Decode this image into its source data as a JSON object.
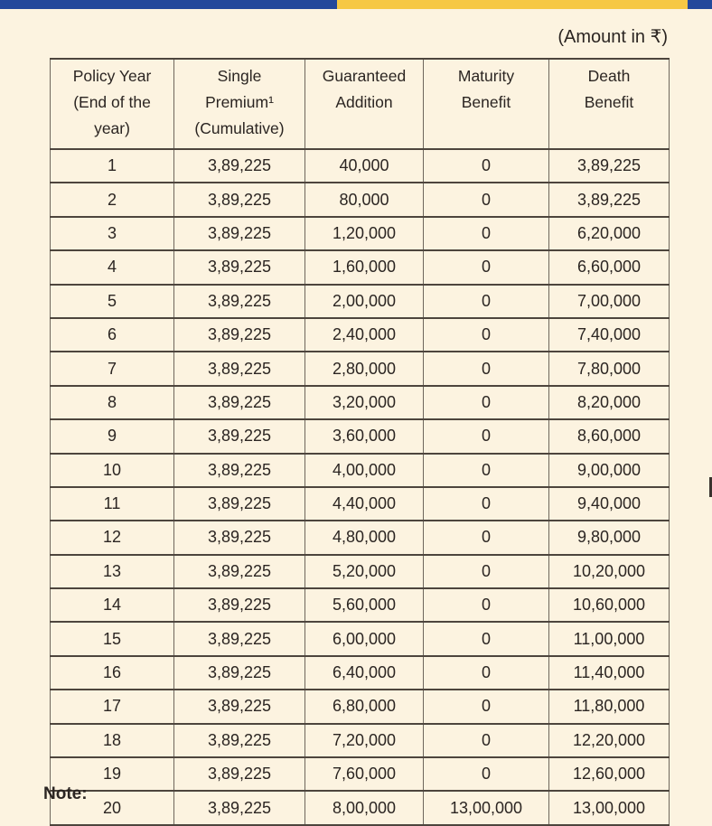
{
  "meta": {
    "amount_label": "(Amount in ₹)",
    "note_label": "Note:"
  },
  "colors": {
    "bar_blue": "#24489b",
    "bar_yellow": "#f6c845",
    "page_background": "#fcf3e0",
    "text": "#2b2522",
    "table_border": "#4d453d"
  },
  "table": {
    "headers": [
      {
        "lines": [
          "Policy Year",
          "(End of the",
          "year)"
        ]
      },
      {
        "lines": [
          "Single",
          "Premium¹",
          "(Cumulative)"
        ]
      },
      {
        "lines": [
          "Guaranteed",
          "Addition"
        ]
      },
      {
        "lines": [
          "Maturity",
          "Benefit"
        ]
      },
      {
        "lines": [
          "Death",
          "Benefit"
        ]
      }
    ],
    "rows": [
      [
        "1",
        "3,89,225",
        "40,000",
        "0",
        "3,89,225"
      ],
      [
        "2",
        "3,89,225",
        "80,000",
        "0",
        "3,89,225"
      ],
      [
        "3",
        "3,89,225",
        "1,20,000",
        "0",
        "6,20,000"
      ],
      [
        "4",
        "3,89,225",
        "1,60,000",
        "0",
        "6,60,000"
      ],
      [
        "5",
        "3,89,225",
        "2,00,000",
        "0",
        "7,00,000"
      ],
      [
        "6",
        "3,89,225",
        "2,40,000",
        "0",
        "7,40,000"
      ],
      [
        "7",
        "3,89,225",
        "2,80,000",
        "0",
        "7,80,000"
      ],
      [
        "8",
        "3,89,225",
        "3,20,000",
        "0",
        "8,20,000"
      ],
      [
        "9",
        "3,89,225",
        "3,60,000",
        "0",
        "8,60,000"
      ],
      [
        "10",
        "3,89,225",
        "4,00,000",
        "0",
        "9,00,000"
      ],
      [
        "11",
        "3,89,225",
        "4,40,000",
        "0",
        "9,40,000"
      ],
      [
        "12",
        "3,89,225",
        "4,80,000",
        "0",
        "9,80,000"
      ],
      [
        "13",
        "3,89,225",
        "5,20,000",
        "0",
        "10,20,000"
      ],
      [
        "14",
        "3,89,225",
        "5,60,000",
        "0",
        "10,60,000"
      ],
      [
        "15",
        "3,89,225",
        "6,00,000",
        "0",
        "11,00,000"
      ],
      [
        "16",
        "3,89,225",
        "6,40,000",
        "0",
        "11,40,000"
      ],
      [
        "17",
        "3,89,225",
        "6,80,000",
        "0",
        "11,80,000"
      ],
      [
        "18",
        "3,89,225",
        "7,20,000",
        "0",
        "12,20,000"
      ],
      [
        "19",
        "3,89,225",
        "7,60,000",
        "0",
        "12,60,000"
      ],
      [
        "20",
        "3,89,225",
        "8,00,000",
        "13,00,000",
        "13,00,000"
      ]
    ]
  }
}
